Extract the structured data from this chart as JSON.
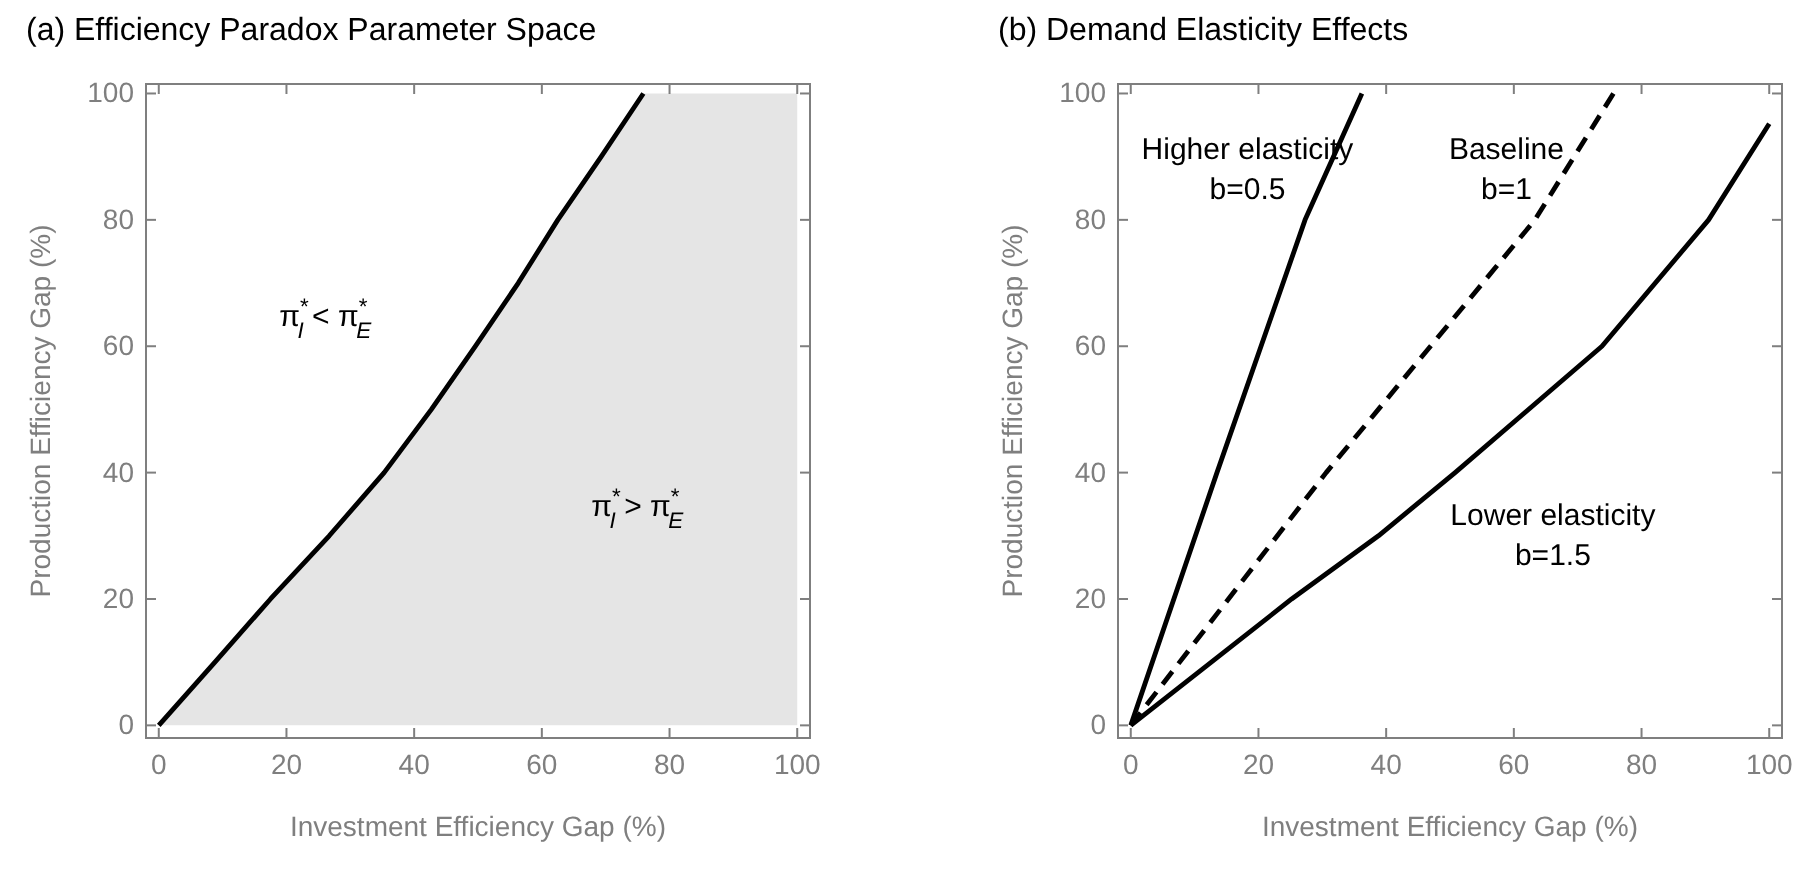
{
  "chart_data": [
    {
      "type": "line",
      "title": "(a) Efficiency Paradox Parameter Space",
      "xlabel": "Investment Efficiency Gap (%)",
      "ylabel": "Production Efficiency Gap (%)",
      "xlim": [
        -2,
        102
      ],
      "ylim": [
        -2,
        101.5
      ],
      "xticks": [
        0,
        20,
        40,
        60,
        80,
        100
      ],
      "yticks": [
        0,
        20,
        40,
        60,
        80,
        100
      ],
      "series": [
        {
          "color": "#000000",
          "line_style": "solid",
          "x": [
            0,
            8.8,
            17.5,
            26.7,
            35.3,
            42.7,
            49.6,
            56.3,
            62.5,
            69.3,
            75.9,
            100
          ],
          "values": [
            0,
            10,
            20,
            30,
            40,
            50,
            60,
            70,
            80,
            90,
            100,
            null
          ],
          "lower": [
            0,
            0,
            0,
            0,
            0,
            0,
            0,
            0,
            0,
            0,
            0,
            0
          ],
          "upper": [
            0,
            10,
            20,
            30,
            40,
            50,
            60,
            70,
            80,
            90,
            100,
            100
          ]
        }
      ],
      "annotations": [
        "π$^{*}$$_{I}$ < π$^{*}$$_{E}$",
        "π$^{*}$$_{I}$ > π$^{*}$$_{E}$"
      ]
    },
    {
      "type": "line",
      "title": "(b) Demand Elasticity Effects",
      "xlabel": "Investment Efficiency Gap (%)",
      "ylabel": "Production Efficiency Gap (%)",
      "xlim": [
        -2,
        102
      ],
      "ylim": [
        -2,
        101.5
      ],
      "xticks": [
        0,
        20,
        40,
        60,
        80,
        100
      ],
      "yticks": [
        0,
        20,
        40,
        60,
        80,
        100
      ],
      "series": [
        {
          "color": "#000000",
          "line_style": "solid",
          "x": [
            0,
            13.5,
            27.3,
            36.2
          ],
          "values": [
            0,
            40,
            80,
            100
          ]
        },
        {
          "color": "#000000",
          "line_style": "dashed",
          "x": [
            0,
            30.6,
            63.3,
            75.6
          ],
          "values": [
            0,
            40,
            80,
            100
          ]
        },
        {
          "color": "#000000",
          "line_style": "solid",
          "x": [
            0,
            25.2,
            38.8,
            50.8,
            73.8,
            90.5,
            100
          ],
          "values": [
            0,
            20,
            30,
            40,
            60,
            80,
            95.2
          ]
        }
      ],
      "annotations": [
        "Higher elasticity\nb=0.5",
        "Baseline\nb=1",
        "Lower elasticity\nb=1.5"
      ]
    }
  ]
}
